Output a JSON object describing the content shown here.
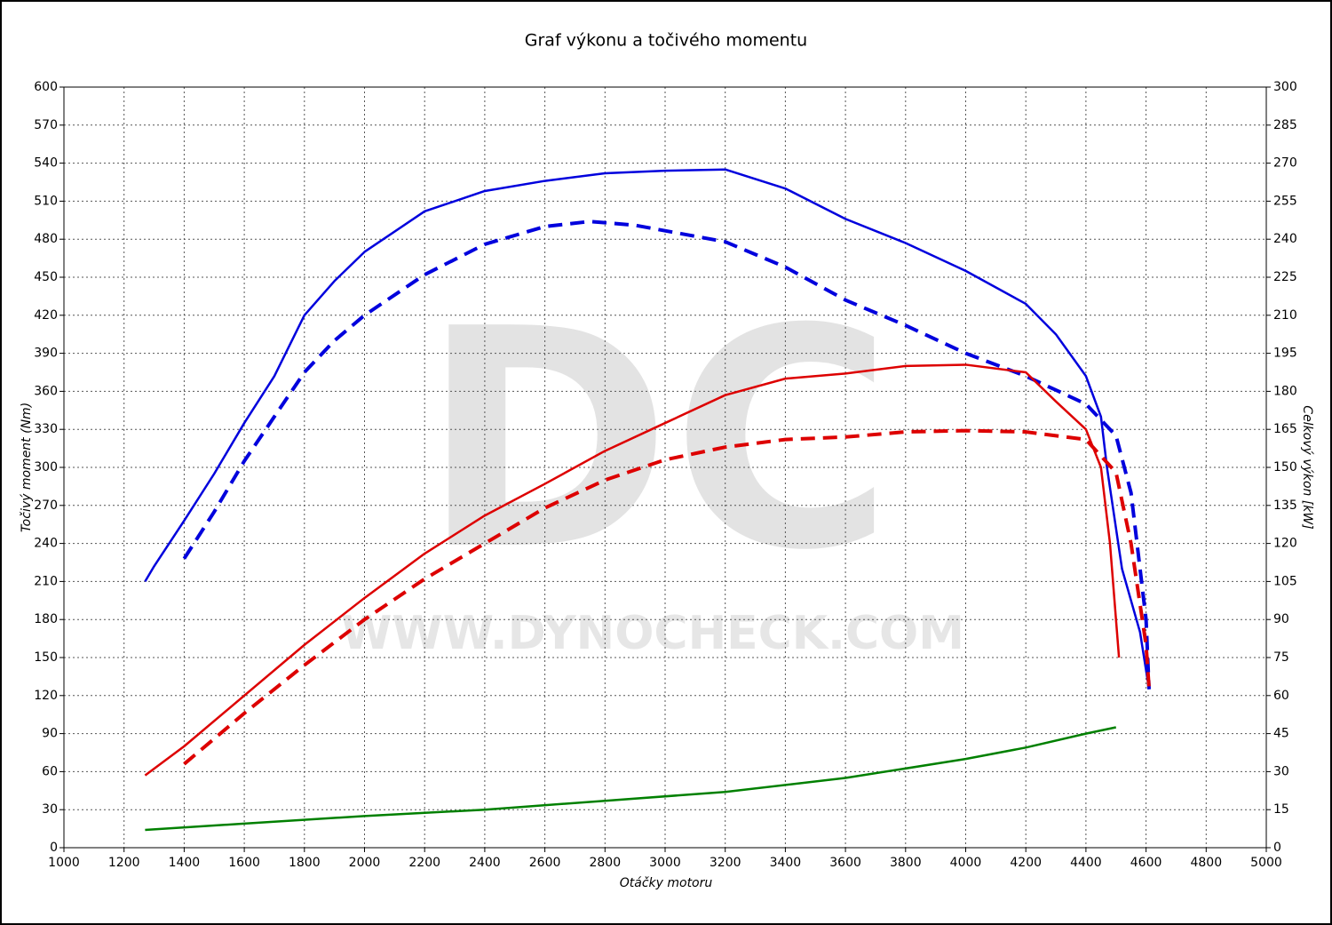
{
  "chart_data": {
    "type": "line",
    "title": "Graf výkonu a točivého momentu",
    "xlabel": "Otáčky motoru",
    "ylabel": "Točivý moment (Nm)",
    "y2label": "Celkový výkon [kW]",
    "watermark": "DC",
    "watermark_url": "WWW.DYNOCHECK.COM",
    "grid": true,
    "xlim": [
      1000,
      5000
    ],
    "xticks": [
      1000,
      1200,
      1400,
      1600,
      1800,
      2000,
      2200,
      2400,
      2600,
      2800,
      3000,
      3200,
      3400,
      3600,
      3800,
      4000,
      4200,
      4400,
      4600,
      4800,
      5000
    ],
    "ylim": [
      0,
      600
    ],
    "yticks": [
      0,
      30,
      60,
      90,
      120,
      150,
      180,
      210,
      240,
      270,
      300,
      330,
      360,
      390,
      420,
      450,
      480,
      510,
      540,
      570,
      600
    ],
    "y2lim": [
      0,
      300
    ],
    "y2ticks": [
      0,
      15,
      30,
      45,
      60,
      75,
      90,
      105,
      120,
      135,
      150,
      165,
      180,
      195,
      210,
      225,
      240,
      255,
      270,
      285,
      300
    ],
    "series": [
      {
        "color": "#0000dd",
        "dashed": false,
        "axis": "y",
        "x": [
          1270,
          1300,
          1400,
          1500,
          1600,
          1700,
          1800,
          1900,
          2000,
          2200,
          2400,
          2600,
          2800,
          3000,
          3200,
          3400,
          3600,
          3800,
          4000,
          4200,
          4300,
          4400,
          4450,
          4470,
          4520,
          4580,
          4610
        ],
        "values": [
          210,
          222,
          258,
          295,
          335,
          372,
          420,
          447,
          470,
          502,
          518,
          526,
          532,
          534,
          535,
          520,
          496,
          477,
          455,
          429,
          405,
          372,
          340,
          300,
          220,
          170,
          125
        ]
      },
      {
        "color": "#0000dd",
        "dashed": true,
        "axis": "y",
        "x": [
          1400,
          1500,
          1600,
          1700,
          1800,
          1900,
          2000,
          2200,
          2400,
          2600,
          2750,
          2900,
          3200,
          3400,
          3600,
          3800,
          4000,
          4200,
          4400,
          4500,
          4550,
          4600,
          4610
        ],
        "values": [
          228,
          265,
          305,
          340,
          375,
          400,
          420,
          452,
          476,
          490,
          494,
          491,
          478,
          458,
          432,
          412,
          390,
          372,
          350,
          325,
          280,
          180,
          125
        ]
      },
      {
        "color": "#dd0000",
        "dashed": false,
        "axis": "y2",
        "x": [
          1270,
          1400,
          1600,
          1800,
          2000,
          2200,
          2400,
          2600,
          2800,
          3000,
          3200,
          3400,
          3600,
          3800,
          4000,
          4200,
          4300,
          4400,
          4450,
          4480,
          4510
        ],
        "values": [
          28.5,
          40,
          60,
          80,
          98.5,
          116,
          131,
          143.5,
          156.5,
          167.5,
          178.5,
          185,
          187,
          190,
          190.5,
          187.5,
          176,
          165,
          150,
          120,
          75
        ]
      },
      {
        "color": "#dd0000",
        "dashed": true,
        "axis": "y2",
        "x": [
          1400,
          1600,
          1800,
          2000,
          2200,
          2400,
          2600,
          2800,
          3000,
          3200,
          3400,
          3600,
          3800,
          4000,
          4200,
          4400,
          4500,
          4550,
          4600,
          4610
        ],
        "values": [
          33,
          53,
          72,
          90,
          106,
          120,
          134,
          145,
          153,
          158,
          161,
          162,
          164,
          164.5,
          164,
          161,
          148,
          120,
          80,
          63
        ]
      },
      {
        "color": "#008000",
        "dashed": false,
        "axis": "y2",
        "x": [
          1270,
          1600,
          2000,
          2400,
          2800,
          3200,
          3600,
          4000,
          4200,
          4400,
          4500
        ],
        "values": [
          7,
          9.5,
          12.5,
          15,
          18.5,
          22,
          27.5,
          35,
          39.5,
          45,
          47.5
        ]
      }
    ]
  }
}
